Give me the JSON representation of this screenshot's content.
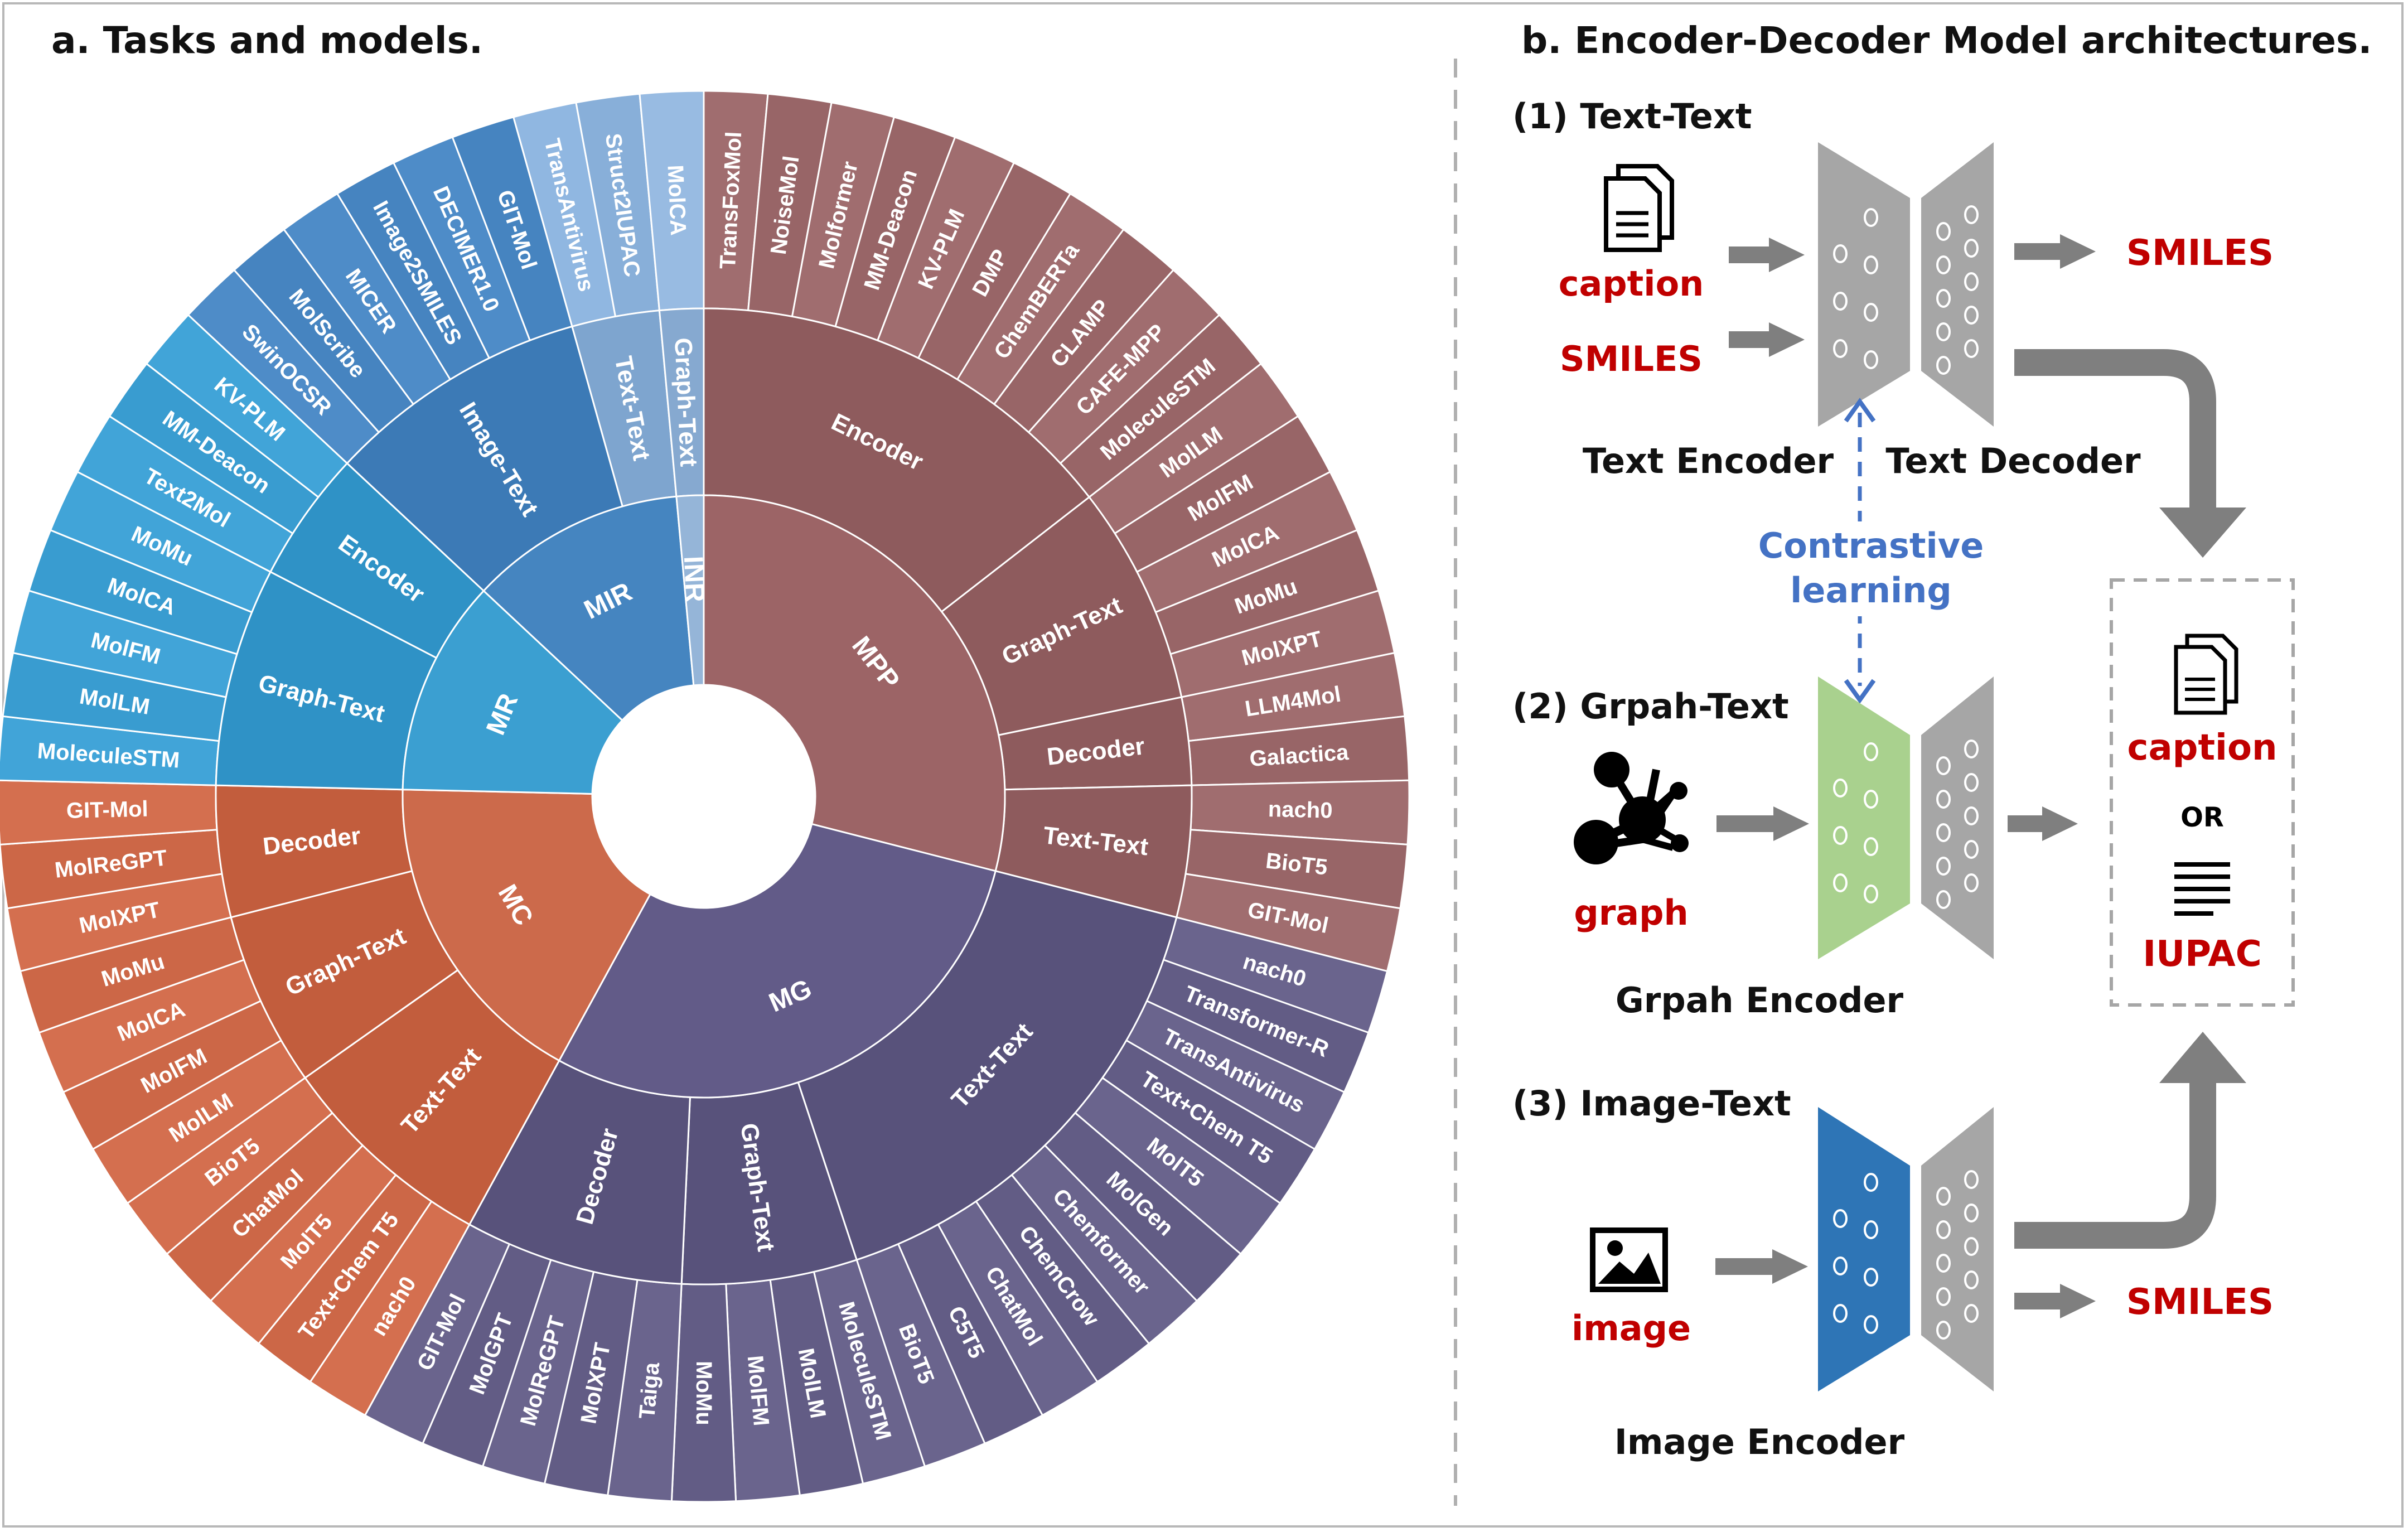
{
  "colors": {
    "mpp": "#9c6466",
    "mg": "#625b88",
    "mc": "#cc6a4b",
    "mr": "#3b9fd1",
    "mir": "#4585c0",
    "inr": "#95b5d8",
    "red_text": "#c00000",
    "blue_text": "#4472c4",
    "gray_arrow": "#7f7f7f",
    "trap": "#a6a6a6",
    "green_enc": "#a9d18e",
    "blue_enc": "#2e75b6"
  },
  "panel_a": {
    "title": "a. Tasks and models.",
    "sunburst": [
      {
        "label": "MPP",
        "color": "#9c6466",
        "children": [
          {
            "label": "Encoder",
            "color": "#8e5b5d",
            "leaves": [
              "TransFoxMol",
              "NoiseMol",
              "Molformer",
              "MM-Deacon",
              "KV-PLM",
              "DMP",
              "ChemBERTa",
              "CLAMP",
              "CAFE-MPP",
              "MoleculeSTM"
            ]
          },
          {
            "label": "Graph-Text",
            "color": "#8e5b5d",
            "leaves": [
              "MolLM",
              "MolFM",
              "MolCA",
              "MoMu",
              "MolXPT"
            ]
          },
          {
            "label": "Decoder",
            "color": "#8e5b5d",
            "leaves": [
              "LLM4Mol",
              "Galactica"
            ]
          },
          {
            "label": "Text-Text",
            "color": "#8e5b5d",
            "leaves": [
              "nach0",
              "BioT5",
              "GIT-Mol"
            ]
          }
        ]
      },
      {
        "label": "MG",
        "color": "#625b88",
        "children": [
          {
            "label": "Text-Text",
            "color": "#58527b",
            "leaves": [
              "nach0",
              "Transformer-R",
              "TransAntivirus",
              "Text+Chem T5",
              "MolT5",
              "MolGen",
              "Chemformer",
              "ChemCrow",
              "ChatMol",
              "C5T5",
              "BioT5"
            ]
          },
          {
            "label": "Graph-Text",
            "color": "#58527b",
            "leaves": [
              "MoleculeSTM",
              "MolLM",
              "MolFM",
              "MoMu"
            ]
          },
          {
            "label": "Decoder",
            "color": "#58527b",
            "leaves": [
              "Taiga",
              "MolXPT",
              "MolReGPT",
              "MolGPT",
              "GIT-Mol"
            ]
          }
        ]
      },
      {
        "label": "MC",
        "color": "#cc6a4b",
        "children": [
          {
            "label": "Text-Text",
            "color": "#c25d3d",
            "leaves": [
              "nach0",
              "Text+Chem T5",
              "MolT5",
              "ChatMol",
              "BioT5"
            ]
          },
          {
            "label": "Graph-Text",
            "color": "#c25d3d",
            "leaves": [
              "MolLM",
              "MolFM",
              "MolCA",
              "MoMu"
            ]
          },
          {
            "label": "Decoder",
            "color": "#c25d3d",
            "leaves": [
              "MolXPT",
              "MolReGPT",
              "GIT-Mol"
            ]
          }
        ]
      },
      {
        "label": "MR",
        "color": "#3b9fd1",
        "children": [
          {
            "label": "Graph-Text",
            "color": "#2f92c6",
            "leaves": [
              "MoleculeSTM",
              "MolLM",
              "MolFM",
              "MolCA",
              "MoMu"
            ]
          },
          {
            "label": "Encoder",
            "color": "#2f92c6",
            "leaves": [
              "Text2Mol",
              "MM-Deacon",
              "KV-PLM"
            ]
          }
        ]
      },
      {
        "label": "MIR",
        "color": "#4585c0",
        "children": [
          {
            "label": "Image-Text",
            "color": "#3c7ab6",
            "leaves": [
              "SwinOCSR",
              "MolScribe",
              "MICER",
              "Image2SMILES",
              "DECIMER1.0",
              "GIT-Mol"
            ]
          },
          {
            "label": "Text-Text",
            "color": "#7ea5cf",
            "leaves": [
              "TransAntivirus",
              "Struct2IUPAC"
            ]
          }
        ]
      },
      {
        "label": "INR",
        "color": "#95b5d8",
        "children": [
          {
            "label": "Graph-Text",
            "color": "#86a9d0",
            "leaves": [
              "MolCA"
            ]
          }
        ]
      }
    ]
  },
  "panel_b": {
    "title": "b. Encoder-Decoder Model architectures.",
    "section1": {
      "heading": "(1) Text-Text",
      "input_caption": "caption",
      "input_smiles": "SMILES",
      "encoder_label": "Text Encoder",
      "decoder_label": "Text Decoder",
      "output": "SMILES"
    },
    "contrastive": {
      "line1": "Contrastive",
      "line2": "learning"
    },
    "section2": {
      "heading": "(2) Grpah-Text",
      "input": "graph",
      "encoder_label": "Grpah Encoder"
    },
    "output_box": {
      "caption": "caption",
      "or": "OR",
      "iupac": "IUPAC"
    },
    "section3": {
      "heading": "(3) Image-Text",
      "input": "image",
      "encoder_label": "Image Encoder",
      "output": "SMILES"
    }
  }
}
